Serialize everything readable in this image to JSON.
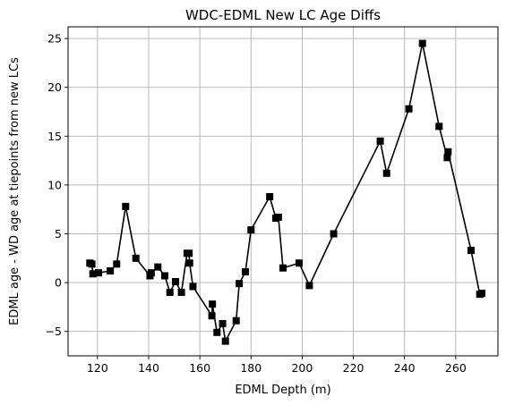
{
  "chart_data": {
    "type": "line",
    "title": "WDC-EDML New LC Age Diffs",
    "xlabel": "EDML Depth (m)",
    "ylabel": "EDML age - WD age at tiepoints from new LCs",
    "xlim": [
      108.5,
      276.5
    ],
    "ylim": [
      -7.5,
      26.2
    ],
    "xticks": [
      120,
      140,
      160,
      180,
      200,
      220,
      240,
      260
    ],
    "yticks": [
      -5,
      0,
      5,
      10,
      15,
      20,
      25
    ],
    "grid": true,
    "marker": "square",
    "color": "#000000",
    "series": [
      {
        "x": [
          117,
          117.8,
          118.2,
          120.4,
          125,
          127.5,
          131,
          135,
          140.5,
          141,
          143.6,
          146.3,
          148.3,
          150.5,
          152.8,
          155,
          155.8,
          156,
          157.3,
          164.7,
          164.9,
          166.7,
          168.9,
          170,
          174.2,
          175.4,
          177.8,
          180,
          187.3,
          189.7,
          190.7,
          192.5,
          198.8,
          202.8,
          212.3,
          230.5,
          233,
          241.7,
          247,
          253.5,
          256.7,
          257,
          266,
          269.4,
          270.2
        ],
        "y": [
          2.0,
          1.9,
          0.9,
          1.0,
          1.2,
          1.9,
          7.8,
          2.5,
          0.7,
          1.0,
          1.6,
          0.7,
          -1.0,
          0.1,
          -1.0,
          3.0,
          3.0,
          2.0,
          -0.4,
          -3.4,
          -2.2,
          -5.1,
          -4.2,
          -6.0,
          -3.9,
          -0.1,
          1.1,
          5.4,
          8.8,
          6.6,
          6.7,
          1.5,
          2.0,
          -0.3,
          5.0,
          14.5,
          11.2,
          17.8,
          24.5,
          16.0,
          12.8,
          13.4,
          3.3,
          -1.2,
          -1.1
        ]
      }
    ]
  }
}
